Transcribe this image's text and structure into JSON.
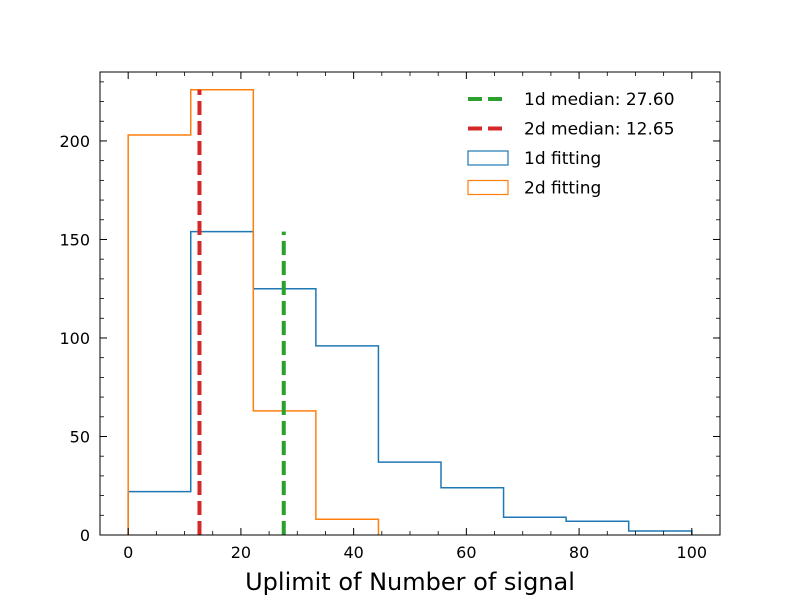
{
  "chart_data": {
    "type": "histogram",
    "title": "",
    "xlabel": "Uplimit of Number of signal",
    "ylabel": "",
    "xlim": [
      -5,
      105
    ],
    "ylim": [
      0,
      235
    ],
    "xticks": [
      0,
      20,
      40,
      60,
      80,
      100
    ],
    "yticks": [
      0,
      50,
      100,
      150,
      200
    ],
    "grid": false,
    "legend_position": "top-right",
    "series": [
      {
        "name": "1d fitting",
        "kind": "step-histogram",
        "color": "#1f77b4",
        "bin_edges": [
          0,
          11.1,
          22.2,
          33.3,
          44.4,
          55.5,
          66.6,
          77.7,
          88.8,
          100
        ],
        "counts": [
          22,
          154,
          125,
          96,
          37,
          24,
          9,
          7,
          2
        ]
      },
      {
        "name": "2d fitting",
        "kind": "step-histogram",
        "color": "#ff7f0e",
        "bin_edges": [
          0,
          11.1,
          22.2,
          33.3,
          44.4
        ],
        "counts": [
          203,
          226,
          63,
          8
        ]
      }
    ],
    "vlines": [
      {
        "name": "1d median: 27.60",
        "x": 27.6,
        "y_top": 154,
        "color": "#2ca02c",
        "style": "dashed"
      },
      {
        "name": "2d median: 12.65",
        "x": 12.65,
        "y_top": 226,
        "color": "#d62728",
        "style": "dashed"
      }
    ]
  }
}
